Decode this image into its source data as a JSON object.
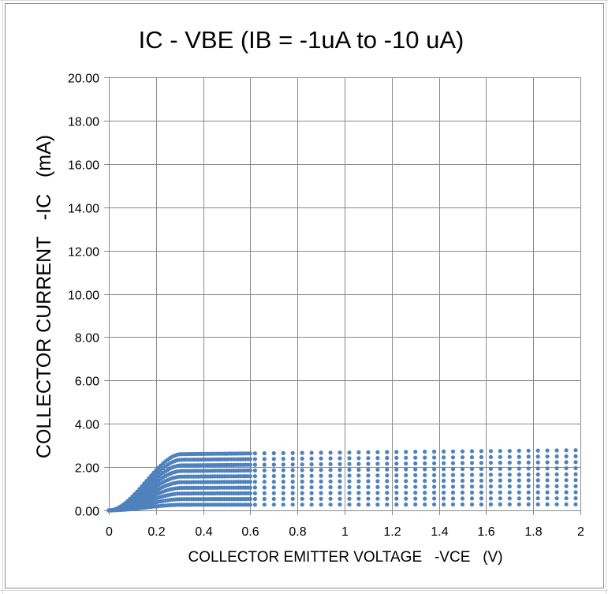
{
  "chart_data": {
    "type": "scatter",
    "title": "IC - VBE (IB = -1uA to -10 uA)",
    "xlabel": "COLLECTOR EMITTER VOLTAGE   -VCE   (V)",
    "ylabel": "COLLECTOR CURRENT   -IC   (mA)",
    "xlim": [
      0,
      2
    ],
    "ylim": [
      0,
      20
    ],
    "x_ticks": [
      0,
      0.2,
      0.4,
      0.6,
      0.8,
      1,
      1.2,
      1.4,
      1.6,
      1.8,
      2
    ],
    "x_tick_labels": [
      "0",
      "0.2",
      "0.4",
      "0.6",
      "0.8",
      "1",
      "1.2",
      "1.4",
      "1.6",
      "1.8",
      "2"
    ],
    "y_ticks": [
      0,
      2,
      4,
      6,
      8,
      10,
      12,
      14,
      16,
      18,
      20
    ],
    "y_tick_labels": [
      "0.00",
      "2.00",
      "4.00",
      "6.00",
      "8.00",
      "10.00",
      "12.00",
      "14.00",
      "16.00",
      "18.00",
      "20.00"
    ],
    "grid": true,
    "legend": "none",
    "marker_color": "#4f81bd",
    "series": [
      {
        "ib_uA": 1,
        "ic_sat_mA": 0.26,
        "ic_end_mA": 0.28
      },
      {
        "ib_uA": 2,
        "ic_sat_mA": 0.52,
        "ic_end_mA": 0.56
      },
      {
        "ib_uA": 3,
        "ic_sat_mA": 0.78,
        "ic_end_mA": 0.84
      },
      {
        "ib_uA": 4,
        "ic_sat_mA": 1.04,
        "ic_end_mA": 1.12
      },
      {
        "ib_uA": 5,
        "ic_sat_mA": 1.3,
        "ic_end_mA": 1.4
      },
      {
        "ib_uA": 6,
        "ic_sat_mA": 1.56,
        "ic_end_mA": 1.67
      },
      {
        "ib_uA": 7,
        "ic_sat_mA": 1.82,
        "ic_end_mA": 1.95
      },
      {
        "ib_uA": 8,
        "ic_sat_mA": 2.08,
        "ic_end_mA": 2.23
      },
      {
        "ib_uA": 9,
        "ic_sat_mA": 2.34,
        "ic_end_mA": 2.5
      },
      {
        "ib_uA": 10,
        "ic_sat_mA": 2.6,
        "ic_end_mA": 2.78
      }
    ]
  }
}
